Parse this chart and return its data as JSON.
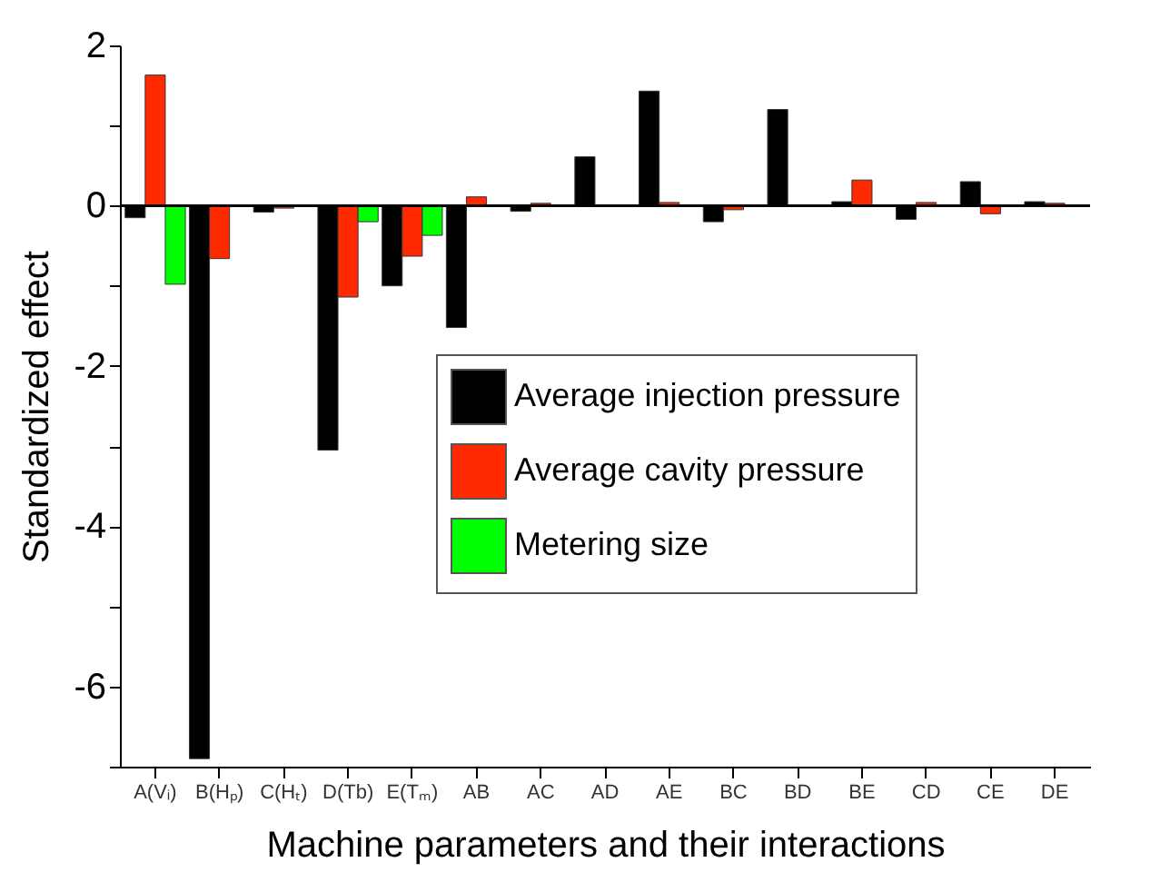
{
  "chart_data": {
    "type": "bar",
    "xlabel": "Machine parameters and their interactions",
    "ylabel": "Standardized effect",
    "categories": [
      "A(Vᵢ)",
      "B(Hₚ)",
      "C(Hₜ)",
      "D(Tb)",
      "E(Tₘ)",
      "AB",
      "AC",
      "AD",
      "AE",
      "BC",
      "BD",
      "BE",
      "CD",
      "CE",
      "DE"
    ],
    "series": [
      {
        "name": "Average injection pressure",
        "color": "#000000",
        "values": [
          -0.15,
          -6.9,
          -0.08,
          -3.05,
          -1.0,
          -1.52,
          -0.07,
          0.61,
          1.43,
          -0.2,
          1.2,
          0.05,
          -0.17,
          0.3,
          0.05
        ]
      },
      {
        "name": "Average cavity pressure",
        "color": "#ff2a00",
        "values": [
          1.63,
          -0.66,
          -0.03,
          -1.14,
          -0.63,
          0.11,
          0.03,
          null,
          0.04,
          -0.05,
          null,
          0.32,
          0.04,
          -0.1,
          0.03
        ]
      },
      {
        "name": "Metering size",
        "color": "#00ff00",
        "values": [
          -0.98,
          null,
          null,
          -0.2,
          -0.37,
          null,
          null,
          null,
          null,
          null,
          null,
          null,
          null,
          null,
          null
        ]
      }
    ],
    "ylim": [
      -7,
      2
    ],
    "yticks": [
      2,
      {
        "value": 1,
        "label": null
      },
      0,
      {
        "value": -1,
        "label": null
      },
      -2,
      {
        "value": -3,
        "label": null
      },
      -4,
      {
        "value": -5,
        "label": null
      },
      -6,
      {
        "value": -7,
        "label": null
      }
    ],
    "ref_lines": [
      {
        "axis": "y",
        "value": 0,
        "label": null,
        "color": "#000000"
      }
    ],
    "grid": false,
    "legend": "right"
  }
}
